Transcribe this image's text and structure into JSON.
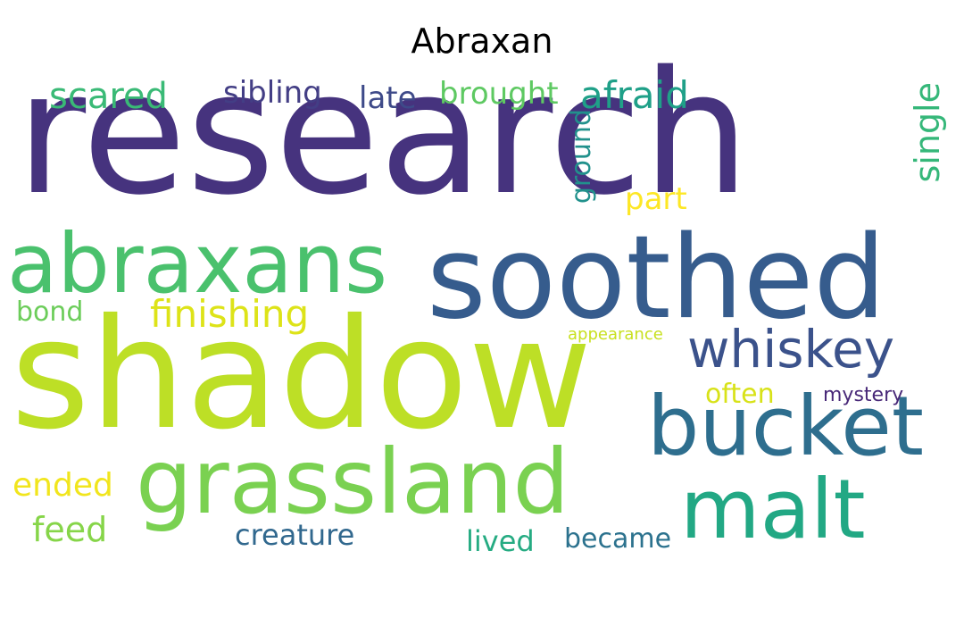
{
  "title": "Abraxan",
  "words": [
    {
      "text": "research",
      "color": "#46337e",
      "vertical": false
    },
    {
      "text": "shadow",
      "color": "#bddf26",
      "vertical": false
    },
    {
      "text": "soothed",
      "color": "#365c8d",
      "vertical": false
    },
    {
      "text": "grassland",
      "color": "#7ad151",
      "vertical": false
    },
    {
      "text": "abraxans",
      "color": "#4ac16d",
      "vertical": false
    },
    {
      "text": "bucket",
      "color": "#2e6e8e",
      "vertical": false
    },
    {
      "text": "malt",
      "color": "#22a884",
      "vertical": false
    },
    {
      "text": "whiskey",
      "color": "#3b528b",
      "vertical": false
    },
    {
      "text": "finishing",
      "color": "#dde318",
      "vertical": false
    },
    {
      "text": "afraid",
      "color": "#1fa088",
      "vertical": false
    },
    {
      "text": "scared",
      "color": "#3aba76",
      "vertical": false
    },
    {
      "text": "sibling",
      "color": "#433e85",
      "vertical": false
    },
    {
      "text": "brought",
      "color": "#5ec962",
      "vertical": false
    },
    {
      "text": "late",
      "color": "#3e4a89",
      "vertical": false
    },
    {
      "text": "single",
      "color": "#35b779",
      "vertical": true
    },
    {
      "text": "ground",
      "color": "#21918c",
      "vertical": true
    },
    {
      "text": "part",
      "color": "#fde725",
      "vertical": false
    },
    {
      "text": "bond",
      "color": "#6ccd5a",
      "vertical": false
    },
    {
      "text": "appearance",
      "color": "#c8e020",
      "vertical": false
    },
    {
      "text": "often",
      "color": "#d8e219",
      "vertical": false
    },
    {
      "text": "mystery",
      "color": "#482878",
      "vertical": false
    },
    {
      "text": "ended",
      "color": "#f1e51d",
      "vertical": false
    },
    {
      "text": "feed",
      "color": "#86d549",
      "vertical": false
    },
    {
      "text": "creature",
      "color": "#31688e",
      "vertical": false
    },
    {
      "text": "lived",
      "color": "#25ab82",
      "vertical": false
    },
    {
      "text": "became",
      "color": "#2c728e",
      "vertical": false
    }
  ]
}
